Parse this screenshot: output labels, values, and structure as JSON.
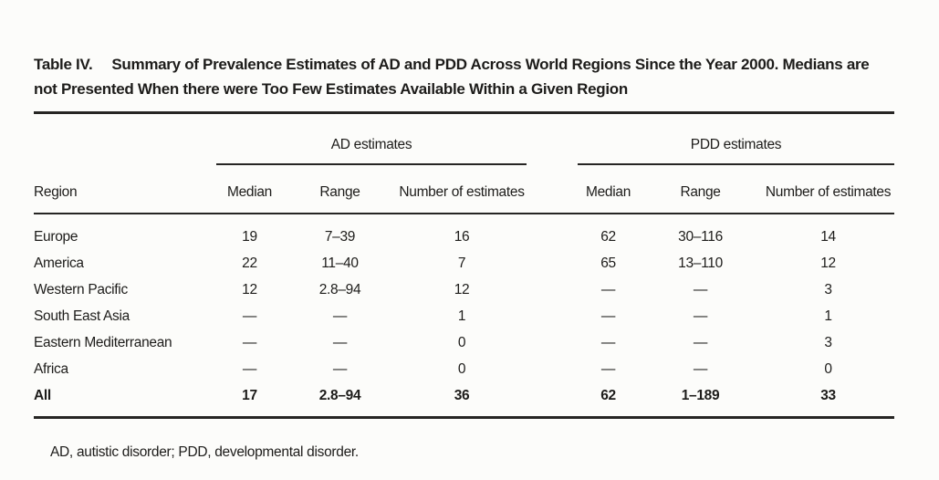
{
  "title": {
    "label": "Table IV.",
    "text": "Summary of Prevalence Estimates of AD and PDD Across World Regions Since the Year 2000. Medians are not Presented When there were Too Few Estimates Available Within a Given Region"
  },
  "table": {
    "groups": [
      {
        "label": "AD estimates"
      },
      {
        "label": "PDD estimates"
      }
    ],
    "columns": {
      "region": "Region",
      "median": "Median",
      "range": "Range",
      "number": "Number of estimates"
    },
    "rows": [
      {
        "region": "Europe",
        "values": [
          "19",
          "7–39",
          "16",
          "62",
          "30–116",
          "14"
        ],
        "bold": false
      },
      {
        "region": "America",
        "values": [
          "22",
          "11–40",
          "7",
          "65",
          "13–110",
          "12"
        ],
        "bold": false
      },
      {
        "region": "Western Pacific",
        "values": [
          "12",
          "2.8–94",
          "12",
          "—",
          "—",
          "3"
        ],
        "bold": false
      },
      {
        "region": "South East Asia",
        "values": [
          "—",
          "—",
          "1",
          "—",
          "—",
          "1"
        ],
        "bold": false
      },
      {
        "region": "Eastern Mediterranean",
        "values": [
          "—",
          "—",
          "0",
          "—",
          "—",
          "3"
        ],
        "bold": false
      },
      {
        "region": "Africa",
        "values": [
          "—",
          "—",
          "0",
          "—",
          "—",
          "0"
        ],
        "bold": false
      },
      {
        "region": "All",
        "values": [
          "17",
          "2.8–94",
          "36",
          "62",
          "1–189",
          "33"
        ],
        "bold": true
      }
    ]
  },
  "footnote": "AD, autistic disorder; PDD, developmental disorder.",
  "colors": {
    "text": "#1d1c1a",
    "rule": "#262523",
    "background": "#fcfcfa"
  }
}
